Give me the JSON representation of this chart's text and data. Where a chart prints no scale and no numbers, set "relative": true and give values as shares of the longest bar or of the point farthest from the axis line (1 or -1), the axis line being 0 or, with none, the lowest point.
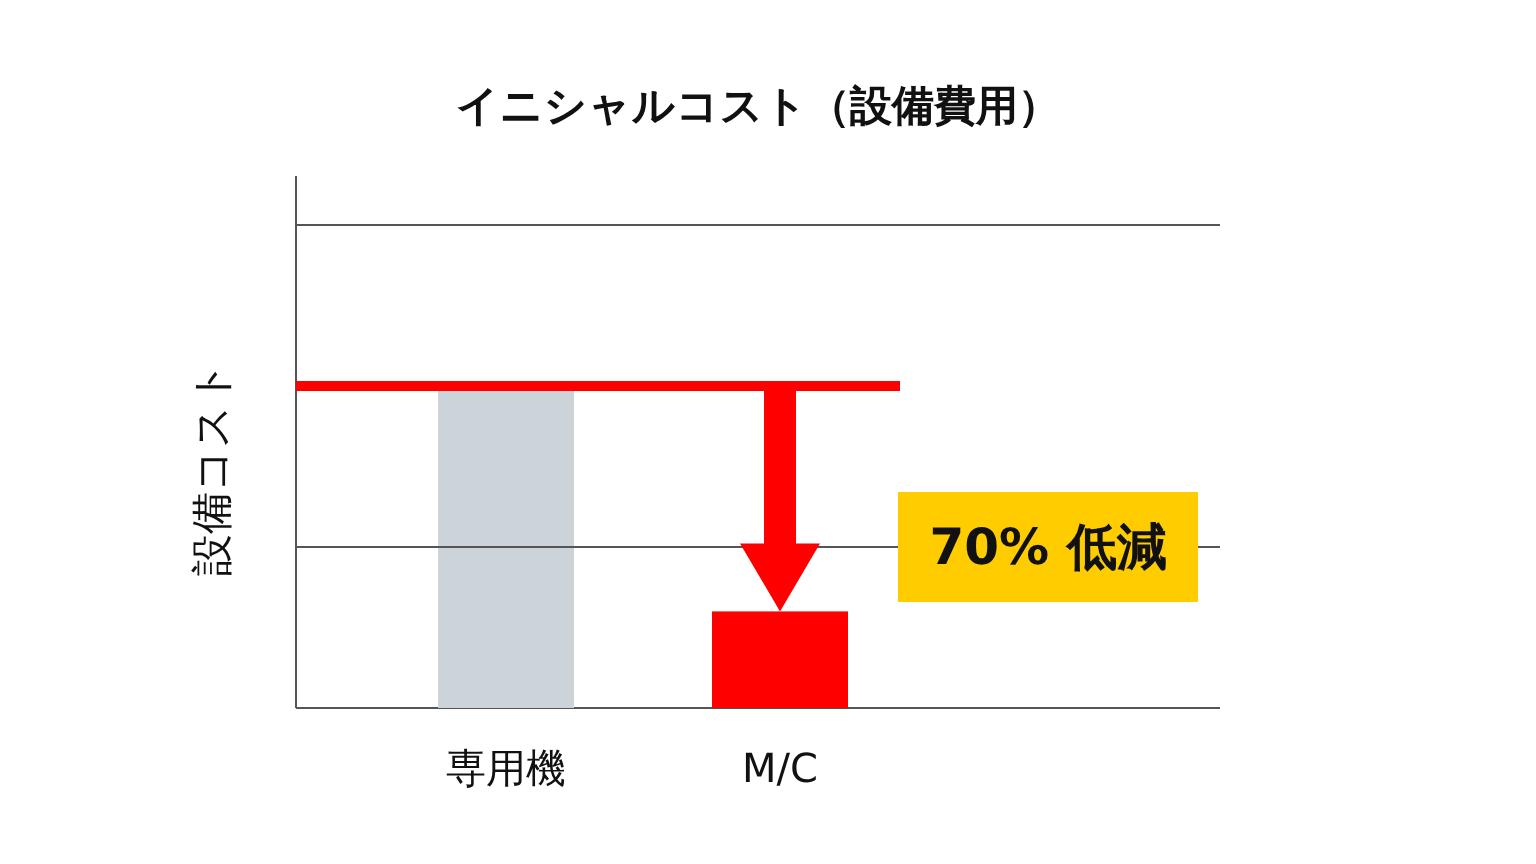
{
  "chart_data": {
    "type": "bar",
    "title": "イニシャルコスト（設備費用）",
    "ylabel": "設備コスト",
    "categories": [
      "専用機",
      "M/C"
    ],
    "values": [
      1,
      0.3
    ],
    "colors": [
      "#ccd3d9",
      "#ff0000"
    ],
    "relative": true,
    "ref_lines": [
      {
        "axis": "y",
        "value": 1,
        "color": "#ff0000"
      },
      {
        "axis": "y",
        "value": 0.5,
        "color": "#555555"
      },
      {
        "axis": "y",
        "value": 1.5,
        "color": "#555555"
      }
    ],
    "annotations": [
      "70% 低減"
    ]
  }
}
